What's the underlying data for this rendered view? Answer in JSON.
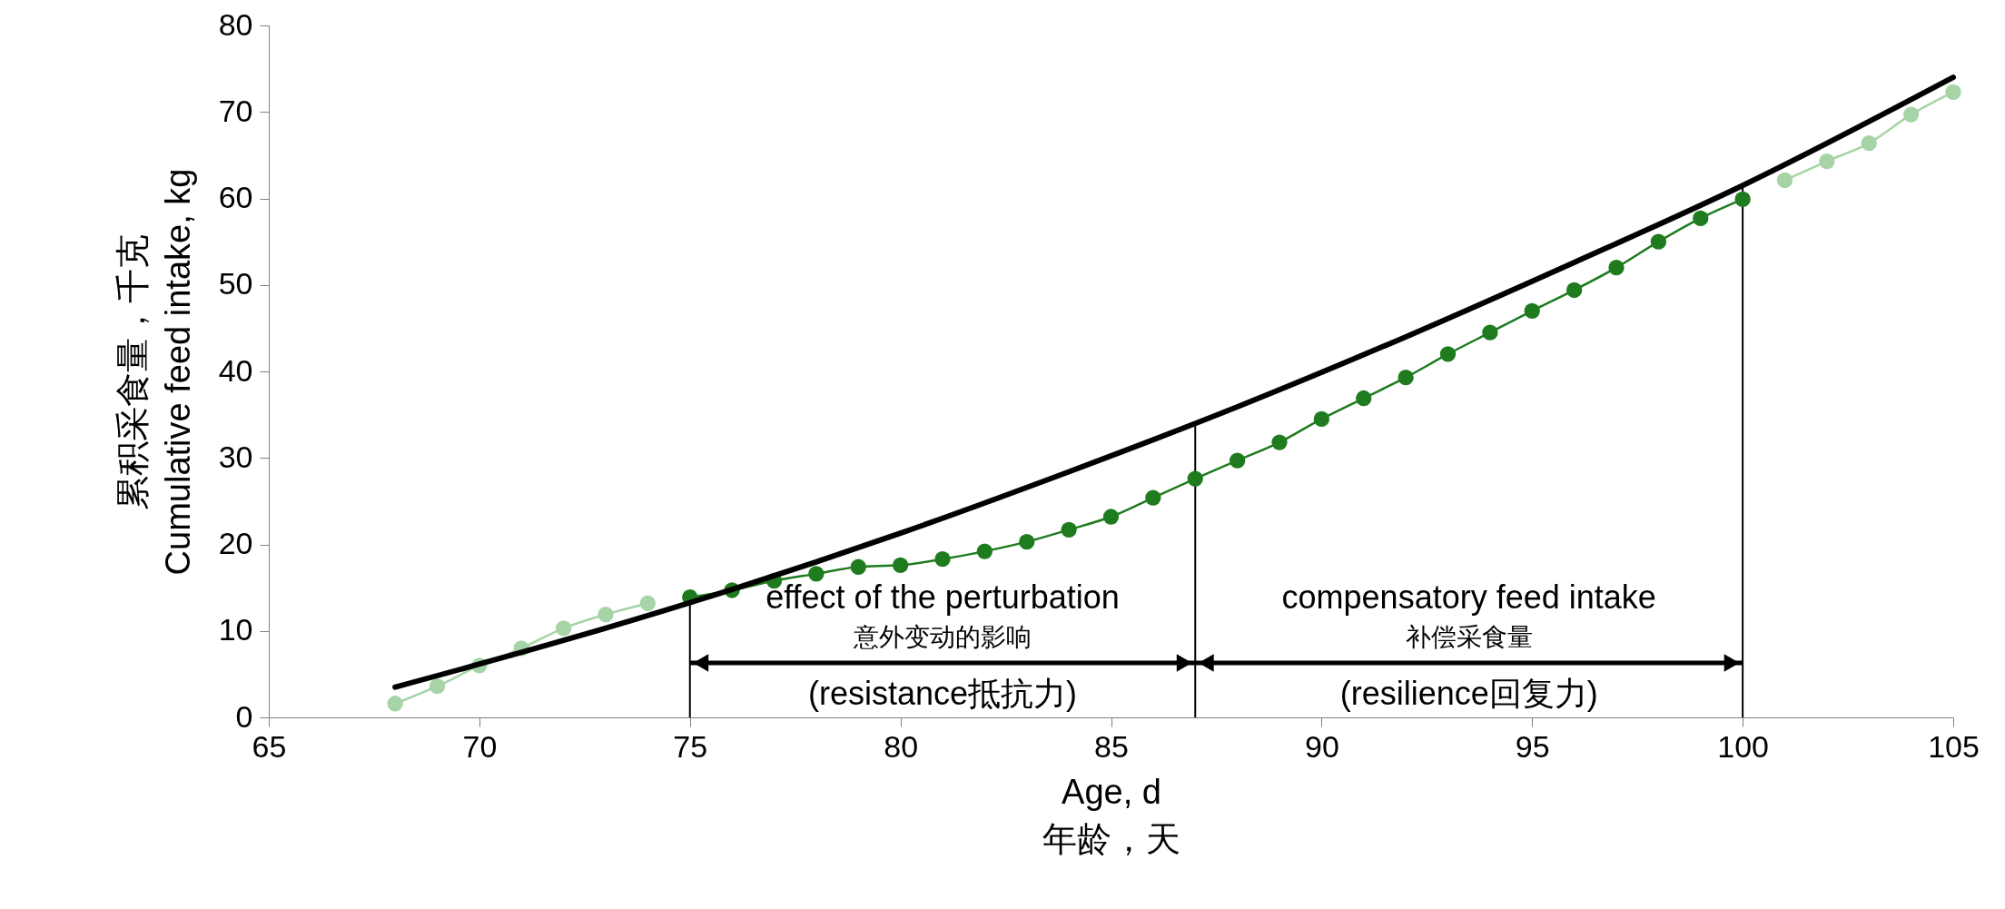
{
  "chart_data": {
    "type": "line",
    "xlabel": "Age, d\n年龄，天",
    "ylabel": "累积采食量，千克\nCumulative feed intake, kg",
    "xlim": [
      65,
      105
    ],
    "xticks": [
      65,
      70,
      75,
      80,
      85,
      90,
      95,
      100,
      105
    ],
    "ylim": [
      0,
      80
    ],
    "yticks": [
      0,
      10,
      20,
      30,
      40,
      50,
      60,
      70,
      80
    ],
    "marker": "circle",
    "series": [
      {
        "color": "#a6d4a6",
        "x": [
          68,
          69,
          70,
          71,
          72,
          73,
          74
        ],
        "values": [
          1.6,
          3.6,
          6,
          8,
          10.3,
          11.9,
          13.2
        ]
      },
      {
        "color": "#1e7b1e",
        "x": [
          75,
          76,
          77,
          78,
          79,
          80,
          81,
          82,
          83,
          84,
          85,
          86,
          87,
          88,
          89,
          90,
          91,
          92,
          93,
          94,
          95,
          96,
          97,
          98,
          99,
          100
        ],
        "values": [
          13.9,
          14.7,
          15.8,
          16.6,
          17.4,
          17.6,
          18.3,
          19.2,
          20.3,
          21.7,
          23.2,
          25.4,
          27.6,
          29.7,
          31.8,
          34.5,
          36.9,
          39.3,
          42,
          44.5,
          47,
          49.4,
          52,
          55,
          57.7,
          59.9
        ]
      },
      {
        "color": "#a6d4a6",
        "x": [
          101,
          102,
          103,
          104,
          105
        ],
        "values": [
          62.1,
          64.3,
          66.4,
          69.7,
          72.3
        ]
      },
      {
        "color": "#000000",
        "marker": "none",
        "x": [
          68,
          72,
          76,
          80,
          84,
          88,
          92,
          96,
          100,
          105
        ],
        "values": [
          3.5,
          8.9,
          14.8,
          21.3,
          28.4,
          35.9,
          44,
          52.6,
          61.5,
          74
        ]
      }
    ],
    "ref_lines": [
      {
        "axis": "x",
        "value": 75
      },
      {
        "axis": "x",
        "value": 87
      },
      {
        "axis": "x",
        "value": 100
      }
    ],
    "annotations": [
      "effect of the perturbation\n意外变动的影响\n(resistance抵抗力)",
      "compensatory feed intake\n补偿采食量\n(resilience回复力)"
    ]
  }
}
